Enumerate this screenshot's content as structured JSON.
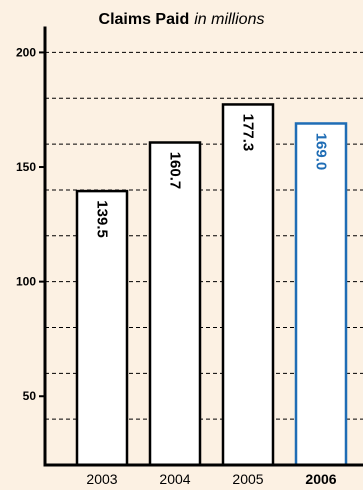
{
  "colors": {
    "background": "#fcf1e3",
    "bar_fill": "#ffffff",
    "bar_stroke": "#000000",
    "highlight": "#1f6db5"
  },
  "chart_data": {
    "type": "bar",
    "title": "Claims Paid",
    "subtitle": "in millions",
    "xlabel": "",
    "ylabel": "",
    "categories": [
      "2003",
      "2004",
      "2005",
      "2006"
    ],
    "values": [
      139.5,
      160.7,
      177.3,
      169.0
    ],
    "value_labels": [
      "139.5",
      "160.7",
      "177.3",
      "169.0"
    ],
    "highlight_category": "2006",
    "ylim": [
      20,
      210
    ],
    "yticks": [
      50,
      100,
      150,
      200
    ],
    "ytick_labels": [
      "50",
      "100",
      "150",
      "200"
    ],
    "gridlines": [
      40,
      60,
      80,
      100,
      120,
      140,
      160,
      180,
      200
    ],
    "grid": true,
    "grid_style": "dashed",
    "legend": false
  }
}
